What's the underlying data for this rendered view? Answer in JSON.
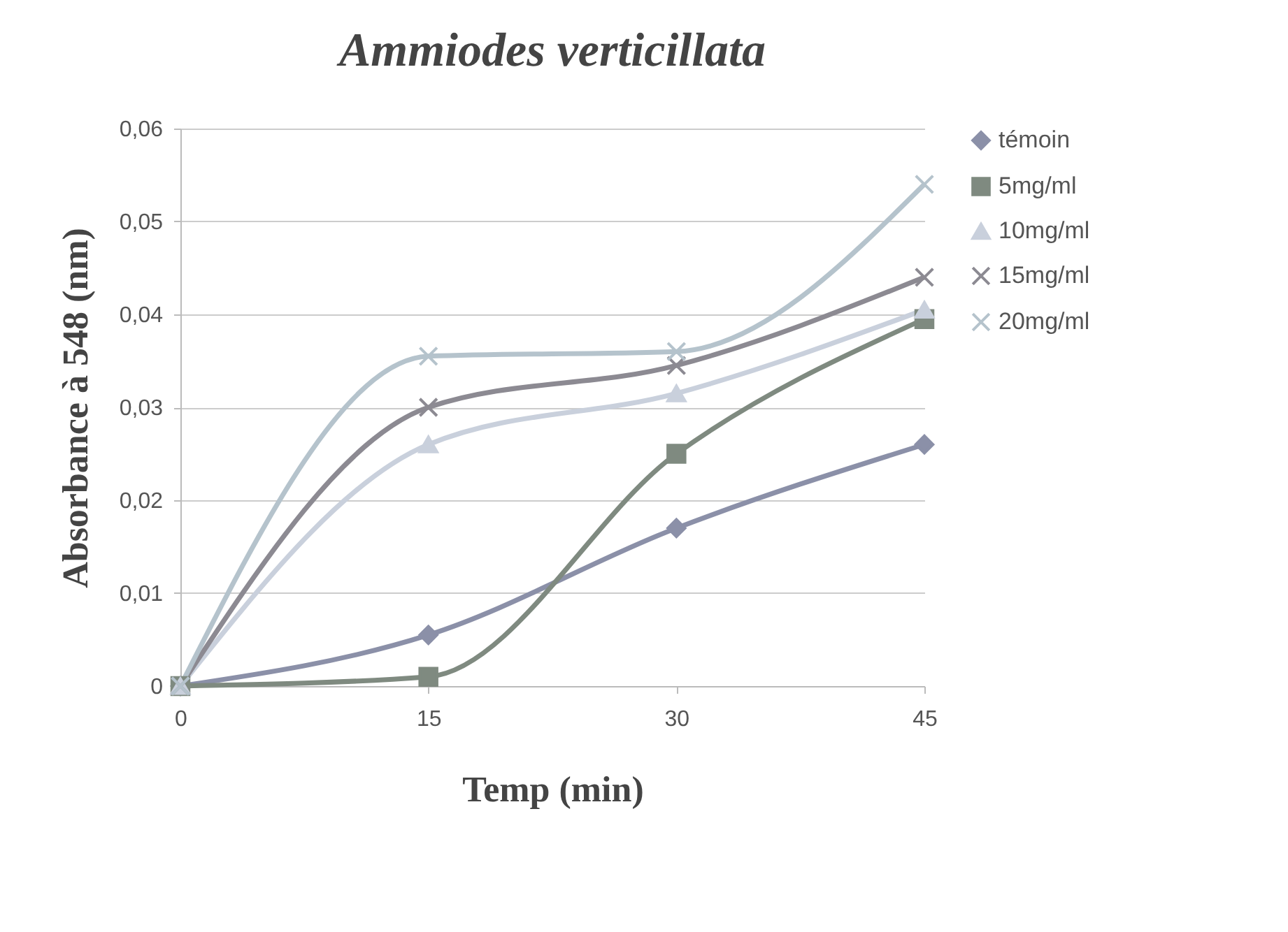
{
  "chart_data": {
    "type": "line",
    "title": "Ammiodes verticillata",
    "xlabel": "Temp (min)",
    "ylabel": "Absorbance à 548 (nm)",
    "x": [
      0,
      15,
      30,
      45
    ],
    "series": [
      {
        "name": "témoin",
        "color": "#8b90a8",
        "marker": "diamond",
        "values": [
          0,
          0.0055,
          0.017,
          0.026
        ]
      },
      {
        "name": "5mg/ml",
        "color": "#7f8a80",
        "marker": "square",
        "values": [
          0,
          0.001,
          0.025,
          0.0395
        ]
      },
      {
        "name": "10mg/ml",
        "color": "#c9d0dc",
        "marker": "triangle",
        "values": [
          0,
          0.026,
          0.0315,
          0.0405
        ]
      },
      {
        "name": "15mg/ml",
        "color": "#8c8a92",
        "marker": "cross",
        "values": [
          0,
          0.03,
          0.0345,
          0.044
        ]
      },
      {
        "name": "20mg/ml",
        "color": "#b5c3cc",
        "marker": "cross",
        "values": [
          0,
          0.0355,
          0.036,
          0.054
        ]
      }
    ],
    "xlim": [
      0,
      45
    ],
    "xticks": [
      0,
      15,
      30,
      45
    ],
    "ylim": [
      0,
      0.06
    ],
    "yticks": [
      {
        "value": 0,
        "label": "0"
      },
      {
        "value": 0.01,
        "label": "0,01"
      },
      {
        "value": 0.02,
        "label": "0,02"
      },
      {
        "value": 0.03,
        "label": "0,03"
      },
      {
        "value": 0.04,
        "label": "0,04"
      },
      {
        "value": 0.05,
        "label": "0,05"
      },
      {
        "value": 0.06,
        "label": "0,06"
      }
    ],
    "grid": "y",
    "legend": "top right",
    "line_style": "solid"
  }
}
